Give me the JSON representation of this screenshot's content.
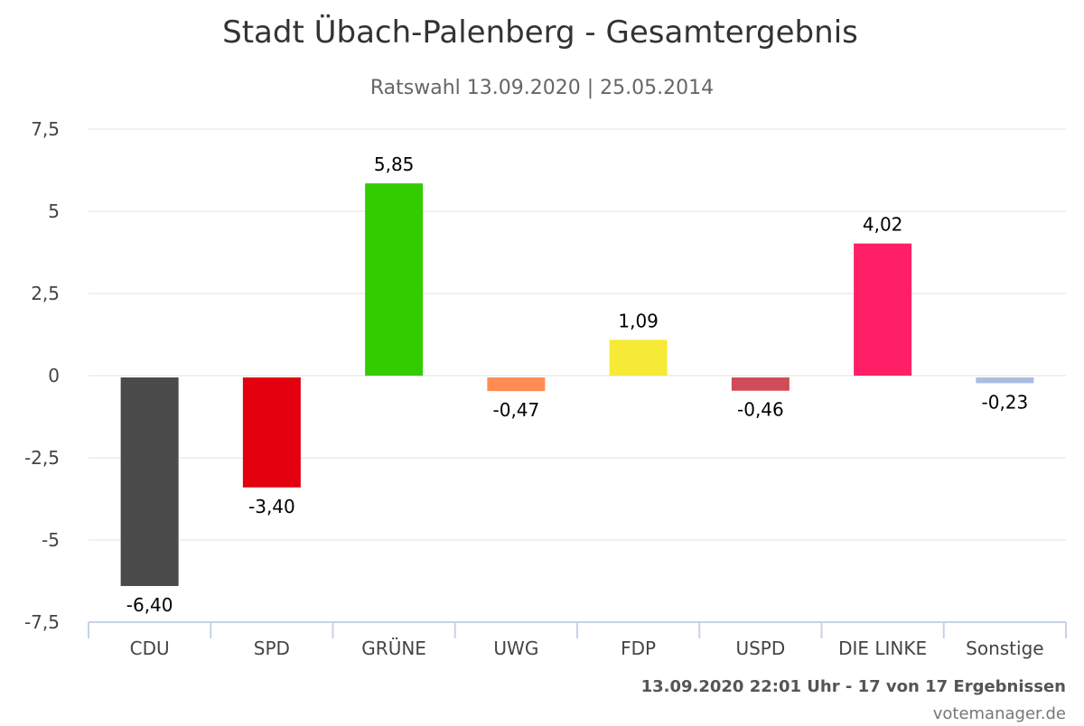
{
  "chart_data": {
    "type": "bar",
    "title": "Stadt Übach-Palenberg - Gesamtergebnis",
    "subtitle": "Ratswahl 13.09.2020 | 25.05.2014",
    "categories": [
      "CDU",
      "SPD",
      "GRÜNE",
      "UWG",
      "FDP",
      "USPD",
      "DIE LINKE",
      "Sonstige"
    ],
    "values": [
      -6.4,
      -3.4,
      5.85,
      -0.47,
      1.09,
      -0.46,
      4.02,
      -0.23
    ],
    "value_labels": [
      "-6,40",
      "-3,40",
      "5,85",
      "-0,47",
      "1,09",
      "-0,46",
      "4,02",
      "-0,23"
    ],
    "colors": [
      "#4a4a4a",
      "#e3000f",
      "#33cc00",
      "#ff8c55",
      "#f7ea36",
      "#d04c58",
      "#ff1f66",
      "#a9bee2"
    ],
    "ylim": [
      -7.5,
      7.5
    ],
    "yticks": [
      7.5,
      5,
      2.5,
      0,
      -2.5,
      -5,
      -7.5
    ],
    "ytick_labels": [
      "7,5",
      "5",
      "2,5",
      "0",
      "-2,5",
      "-5",
      "-7,5"
    ],
    "grid": true,
    "xlabel": "",
    "ylabel": ""
  },
  "footer": {
    "status": "13.09.2020 22:01 Uhr - 17 von 17 Ergebnissen",
    "credit": "votemanager.de"
  }
}
